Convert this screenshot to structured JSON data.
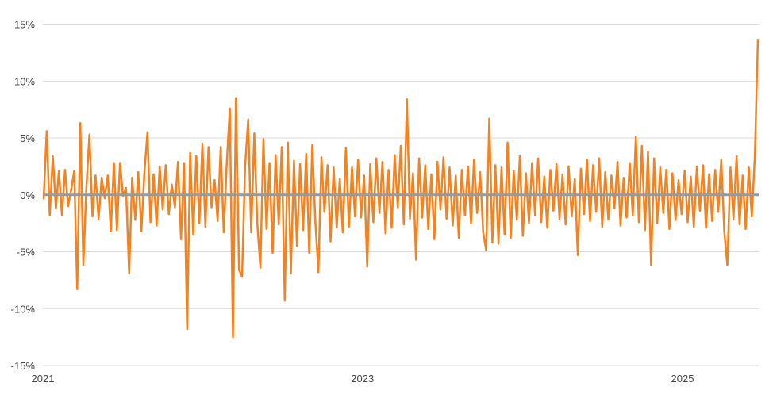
{
  "chart_data": {
    "type": "line",
    "title": "",
    "xlabel": "",
    "ylabel": "",
    "xlim": [
      "2021-01-01",
      "2025-06-24"
    ],
    "ylim": [
      -15,
      15
    ],
    "grid": true,
    "legend": "none",
    "x_ticks": [
      {
        "label": "2021",
        "date": "2021-01-01"
      },
      {
        "label": "2023",
        "date": "2023-01-01"
      },
      {
        "label": "2025",
        "date": "2025-01-01"
      }
    ],
    "y_ticks": [
      {
        "label": "15%",
        "value": 15
      },
      {
        "label": "10%",
        "value": 10
      },
      {
        "label": "5%",
        "value": 5
      },
      {
        "label": "0%",
        "value": 0
      },
      {
        "label": "-5%",
        "value": -5
      },
      {
        "label": "-10%",
        "value": -10
      },
      {
        "label": "-15%",
        "value": -15
      }
    ],
    "colors": {
      "series": "#f5821f",
      "zero_line": "#999999",
      "grid": "#d9d9d9"
    },
    "series": [
      {
        "spacing": "evenly spaced across xlim",
        "values": [
          -0.4,
          5.6,
          -1.8,
          3.4,
          -1.2,
          2.1,
          -1.8,
          2.2,
          -1.0,
          0.4,
          2.1,
          -8.3,
          6.3,
          -6.2,
          0.6,
          5.3,
          -1.9,
          1.7,
          -2.1,
          1.5,
          -0.3,
          1.7,
          -3.2,
          2.8,
          -3.1,
          2.8,
          -0.1,
          0.6,
          -6.9,
          1.5,
          -2.2,
          2.0,
          -3.2,
          1.9,
          5.5,
          -2.4,
          1.8,
          -2.7,
          2.5,
          -1.3,
          2.6,
          -1.7,
          0.9,
          -1.1,
          2.9,
          -3.9,
          2.8,
          -11.8,
          3.7,
          -3.5,
          3.4,
          -2.5,
          4.5,
          -2.8,
          4.2,
          -1.1,
          1.3,
          -2.3,
          4.2,
          -3.3,
          2.9,
          7.6,
          -12.5,
          8.5,
          -6.6,
          -7.2,
          2.5,
          6.6,
          -3.3,
          5.4,
          -2.5,
          -6.4,
          4.9,
          -3.0,
          2.8,
          -5.1,
          3.5,
          -2.6,
          4.2,
          -9.3,
          4.6,
          -6.9,
          3.0,
          -4.5,
          2.7,
          -3.1,
          3.6,
          -5.1,
          4.4,
          -2.3,
          -6.8,
          3.3,
          -1.5,
          2.6,
          -4.1,
          2.4,
          -2.9,
          1.4,
          -3.3,
          4.1,
          -2.8,
          2.4,
          -1.9,
          3.1,
          -2.0,
          1.7,
          -6.3,
          2.7,
          -2.4,
          3.2,
          -1.6,
          2.9,
          -3.4,
          2.2,
          -2.9,
          3.5,
          -1.1,
          4.3,
          -2.6,
          8.4,
          -2.1,
          1.9,
          -5.7,
          3.2,
          -2.0,
          2.6,
          -3.0,
          1.8,
          -3.9,
          2.9,
          -1.3,
          3.3,
          -2.1,
          2.4,
          -2.7,
          1.7,
          -3.8,
          2.2,
          -1.8,
          2.5,
          -2.5,
          3.1,
          -1.6,
          2.0,
          -3.3,
          -4.9,
          6.7,
          -4.2,
          2.6,
          -4.3,
          2.4,
          -3.5,
          4.6,
          -3.8,
          2.1,
          -2.2,
          3.4,
          -3.6,
          1.9,
          -2.5,
          2.8,
          -1.8,
          3.2,
          -2.4,
          1.6,
          -2.9,
          2.2,
          -1.4,
          2.7,
          -2.1,
          1.8,
          -2.6,
          2.5,
          -1.9,
          1.4,
          -5.3,
          2.3,
          -1.7,
          3.1,
          -2.3,
          2.6,
          -1.5,
          3.2,
          -2.8,
          2.0,
          -2.2,
          1.7,
          -1.2,
          2.9,
          -2.7,
          1.5,
          -2.0,
          2.8,
          -1.8,
          5.1,
          -2.4,
          4.3,
          -3.1,
          3.8,
          -6.2,
          3.2,
          -2.5,
          2.4,
          -1.6,
          2.2,
          -3.0,
          1.9,
          -2.2,
          1.3,
          -1.7,
          2.1,
          -2.4,
          1.6,
          -2.8,
          2.5,
          -1.4,
          2.6,
          -2.9,
          1.8,
          -2.3,
          2.2,
          -1.5,
          3.1,
          -3.3,
          -6.2,
          2.4,
          -2.1,
          3.4,
          -2.6,
          1.7,
          -3.0,
          2.4,
          -1.9,
          3.5,
          13.7
        ]
      }
    ]
  }
}
